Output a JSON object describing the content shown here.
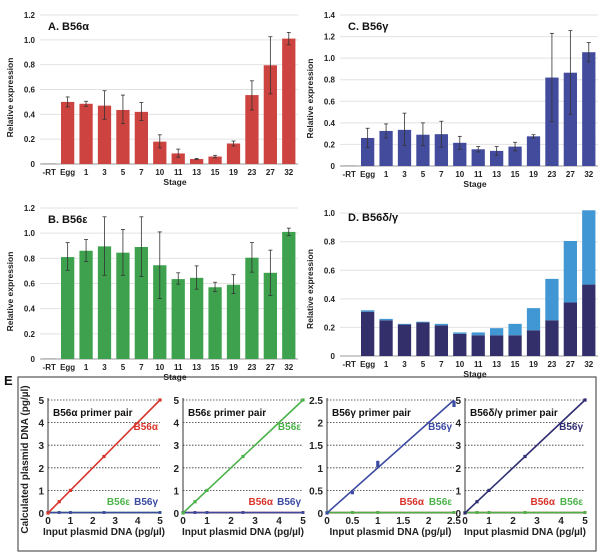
{
  "figure_label_e": "E",
  "chart_data": [
    {
      "id": "A",
      "type": "bar",
      "title": "A.  B56α",
      "xlabel": "Stage",
      "ylabel": "Relative expression",
      "categories": [
        "-RT",
        "Egg",
        "1",
        "3",
        "5",
        "7",
        "10",
        "11",
        "13",
        "15",
        "19",
        "23",
        "27",
        "32"
      ],
      "values": [
        0,
        0.5,
        0.485,
        0.47,
        0.435,
        0.42,
        0.18,
        0.085,
        0.04,
        0.06,
        0.165,
        0.555,
        0.795,
        1.01
      ],
      "err_low": [
        0,
        0.04,
        0.02,
        0.11,
        0.11,
        0.07,
        0.05,
        0.03,
        0.005,
        0.01,
        0.02,
        0.12,
        0.23,
        0.05
      ],
      "err_high": [
        0,
        0.04,
        0.02,
        0.12,
        0.12,
        0.075,
        0.055,
        0.035,
        0.005,
        0.01,
        0.02,
        0.115,
        0.23,
        0.05
      ],
      "yticks": [
        "0",
        "0.2",
        "0.4",
        "0.6",
        "0.8",
        "1.0",
        "1.2"
      ],
      "ylim": [
        0,
        1.2
      ],
      "color": "#cc4340",
      "grid": true
    },
    {
      "id": "B",
      "type": "bar",
      "title": "B.  B56ε",
      "xlabel": "Stage",
      "ylabel": "Relative expression",
      "categories": [
        "-RT",
        "Egg",
        "1",
        "3",
        "5",
        "7",
        "10",
        "11",
        "13",
        "15",
        "19",
        "23",
        "27",
        "32"
      ],
      "values": [
        0,
        0.81,
        0.86,
        0.895,
        0.845,
        0.89,
        0.745,
        0.635,
        0.645,
        0.57,
        0.59,
        0.805,
        0.685,
        1.01
      ],
      "err_low": [
        0,
        0.105,
        0.085,
        0.23,
        0.18,
        0.235,
        0.265,
        0.04,
        0.09,
        0.035,
        0.07,
        0.115,
        0.18,
        0.03
      ],
      "err_high": [
        0,
        0.115,
        0.09,
        0.235,
        0.185,
        0.24,
        0.265,
        0.05,
        0.095,
        0.04,
        0.08,
        0.12,
        0.18,
        0.03
      ],
      "yticks": [
        "0",
        "0.2",
        "0.4",
        "0.6",
        "0.8",
        "1.0",
        "1.2"
      ],
      "ylim": [
        0,
        1.2
      ],
      "color": "#3da14d",
      "grid": true
    },
    {
      "id": "C",
      "type": "bar",
      "title": "C.  B56γ",
      "xlabel": "Stage",
      "ylabel": "Relative expression",
      "categories": [
        "-RT",
        "Egg",
        "1",
        "3",
        "5",
        "7",
        "10",
        "11",
        "13",
        "15",
        "19",
        "23",
        "27",
        "32"
      ],
      "values": [
        0,
        0.26,
        0.325,
        0.335,
        0.29,
        0.295,
        0.215,
        0.155,
        0.14,
        0.18,
        0.275,
        0.82,
        0.865,
        1.055
      ],
      "err_low": [
        0,
        0.09,
        0.065,
        0.145,
        0.1,
        0.12,
        0.06,
        0.025,
        0.04,
        0.04,
        0.015,
        0.41,
        0.385,
        0.09
      ],
      "err_high": [
        0,
        0.09,
        0.065,
        0.155,
        0.11,
        0.12,
        0.06,
        0.025,
        0.04,
        0.04,
        0.015,
        0.41,
        0.39,
        0.09
      ],
      "yticks": [
        "0",
        "0.2",
        "0.4",
        "0.6",
        "0.8",
        "1.0",
        "1.2",
        "1.4"
      ],
      "ylim": [
        0,
        1.4
      ],
      "color": "#434b9c",
      "grid": true
    },
    {
      "id": "D",
      "type": "bar",
      "stacked": true,
      "title": "D.  B56δ/γ",
      "xlabel": "Stage",
      "ylabel": "Relative expression",
      "categories": [
        "-RT",
        "Egg",
        "1",
        "3",
        "5",
        "7",
        "10",
        "11",
        "13",
        "15",
        "19",
        "23",
        "27",
        "32"
      ],
      "series": [
        {
          "name": "B56δ",
          "color": "#332f6b",
          "values": [
            0,
            0.31,
            0.25,
            0.22,
            0.235,
            0.215,
            0.155,
            0.145,
            0.145,
            0.145,
            0.18,
            0.25,
            0.375,
            0.5
          ]
        },
        {
          "name": "B56γ",
          "color": "#4197d3",
          "values": [
            0,
            0.01,
            0.01,
            0.005,
            0.005,
            0.01,
            0.01,
            0.02,
            0.05,
            0.08,
            0.155,
            0.29,
            0.43,
            0.52
          ]
        }
      ],
      "yticks": [
        "0",
        "0.2",
        "0.4",
        "0.6",
        "0.8",
        "1.0"
      ],
      "ylim": [
        0,
        1.05
      ],
      "grid": true
    },
    {
      "id": "E1",
      "type": "line",
      "title": "B56α primer pair",
      "xlabel": "Input plasmid DNA (pg/µl)",
      "ylabel": "Calculated plasmid DNA (pg/µl)",
      "xlim": [
        0,
        5
      ],
      "ylim": [
        0,
        5
      ],
      "xticks": [
        "0",
        "1",
        "2",
        "3",
        "4",
        "5"
      ],
      "yticks": [
        "0",
        "1",
        "2",
        "3",
        "4",
        "5"
      ],
      "series": [
        {
          "name": "B56α",
          "color": "#d8342b",
          "x": [
            0,
            0.5,
            1,
            2.5,
            5
          ],
          "y": [
            0,
            0.5,
            1.0,
            2.5,
            5.0
          ],
          "label_pos": "main"
        },
        {
          "name": "B56ε",
          "color": "#4bb34a",
          "x": [
            0,
            0.5,
            1,
            2.5,
            5
          ],
          "y": [
            0,
            0,
            0,
            0,
            0
          ],
          "label_pos": "bottom-1"
        },
        {
          "name": "B56γ",
          "color": "#3c4aa2",
          "x": [
            0,
            0.5,
            1,
            2.5,
            5
          ],
          "y": [
            0,
            0,
            0,
            0,
            0
          ],
          "label_pos": "bottom-2"
        }
      ]
    },
    {
      "id": "E2",
      "type": "line",
      "title": "B56ε primer pair",
      "xlabel": "Input plasmid DNA (pg/µl)",
      "ylabel": "",
      "xlim": [
        0,
        5
      ],
      "ylim": [
        0,
        5
      ],
      "xticks": [
        "0",
        "1",
        "2",
        "3",
        "4",
        "5"
      ],
      "yticks": [
        "0",
        "1",
        "2",
        "3",
        "4",
        "5"
      ],
      "series": [
        {
          "name": "B56ε",
          "color": "#4bb34a",
          "x": [
            0,
            0.5,
            1,
            2.5,
            5
          ],
          "y": [
            0,
            0.5,
            1.0,
            2.5,
            5.0
          ],
          "label_pos": "main"
        },
        {
          "name": "B56α",
          "color": "#d8342b",
          "x": [
            0,
            0.5,
            1,
            2.5,
            5
          ],
          "y": [
            0,
            0,
            0,
            0,
            0
          ],
          "label_pos": "bottom-1"
        },
        {
          "name": "B56γ",
          "color": "#3c4aa2",
          "x": [
            0,
            0.5,
            1,
            2.5,
            5
          ],
          "y": [
            0,
            0,
            0,
            0,
            0
          ],
          "label_pos": "bottom-2"
        }
      ]
    },
    {
      "id": "E3",
      "type": "line",
      "title": "B56γ primer pair",
      "xlabel": "Input plasmid DNA (pg/µl)",
      "ylabel": "",
      "xlim": [
        0,
        2.5
      ],
      "ylim": [
        0,
        2.5
      ],
      "xticks": [
        "0",
        "0.5",
        "1",
        "1.5",
        "2",
        "2.5"
      ],
      "yticks": [
        "0",
        "0.5",
        "1",
        "1.5",
        "2",
        "2.5"
      ],
      "series": [
        {
          "name": "B56γ",
          "color": "#3c4aa2",
          "x": [
            0,
            0.5,
            1,
            1,
            2.5,
            2.5
          ],
          "y": [
            0,
            0.45,
            1.05,
            1.12,
            2.45,
            2.38
          ],
          "label_pos": "main"
        },
        {
          "name": "B56α",
          "color": "#d8342b",
          "x": [
            0,
            0.5,
            1,
            2.5
          ],
          "y": [
            0,
            0,
            0,
            0
          ],
          "label_pos": "bottom-1"
        },
        {
          "name": "B56ε",
          "color": "#4bb34a",
          "x": [
            0,
            0.5,
            1,
            2.5
          ],
          "y": [
            0,
            0,
            0,
            0
          ],
          "label_pos": "bottom-2"
        }
      ]
    },
    {
      "id": "E4",
      "type": "line",
      "title": "B56δ/γ primer pair",
      "xlabel": "Input plasmid DNA (pg/µl)",
      "ylabel": "",
      "xlim": [
        0,
        5
      ],
      "ylim": [
        0,
        5
      ],
      "xticks": [
        "0",
        "1",
        "2",
        "3",
        "4",
        "5"
      ],
      "yticks": [
        "0",
        "1",
        "2",
        "3",
        "4",
        "5"
      ],
      "series": [
        {
          "name": "B56γ",
          "color": "#2f2d72",
          "x": [
            0,
            0.5,
            1,
            2.5,
            5
          ],
          "y": [
            0,
            0.5,
            1.0,
            2.5,
            5.0
          ],
          "label_pos": "main"
        },
        {
          "name": "B56α",
          "color": "#d8342b",
          "x": [
            0,
            0.5,
            1,
            2.5,
            5
          ],
          "y": [
            0,
            0,
            0,
            0,
            0
          ],
          "label_pos": "bottom-1"
        },
        {
          "name": "B56ε",
          "color": "#4bb34a",
          "x": [
            0,
            0.5,
            1,
            2.5,
            5
          ],
          "y": [
            0,
            0,
            0,
            0,
            0
          ],
          "label_pos": "bottom-2"
        }
      ]
    }
  ]
}
